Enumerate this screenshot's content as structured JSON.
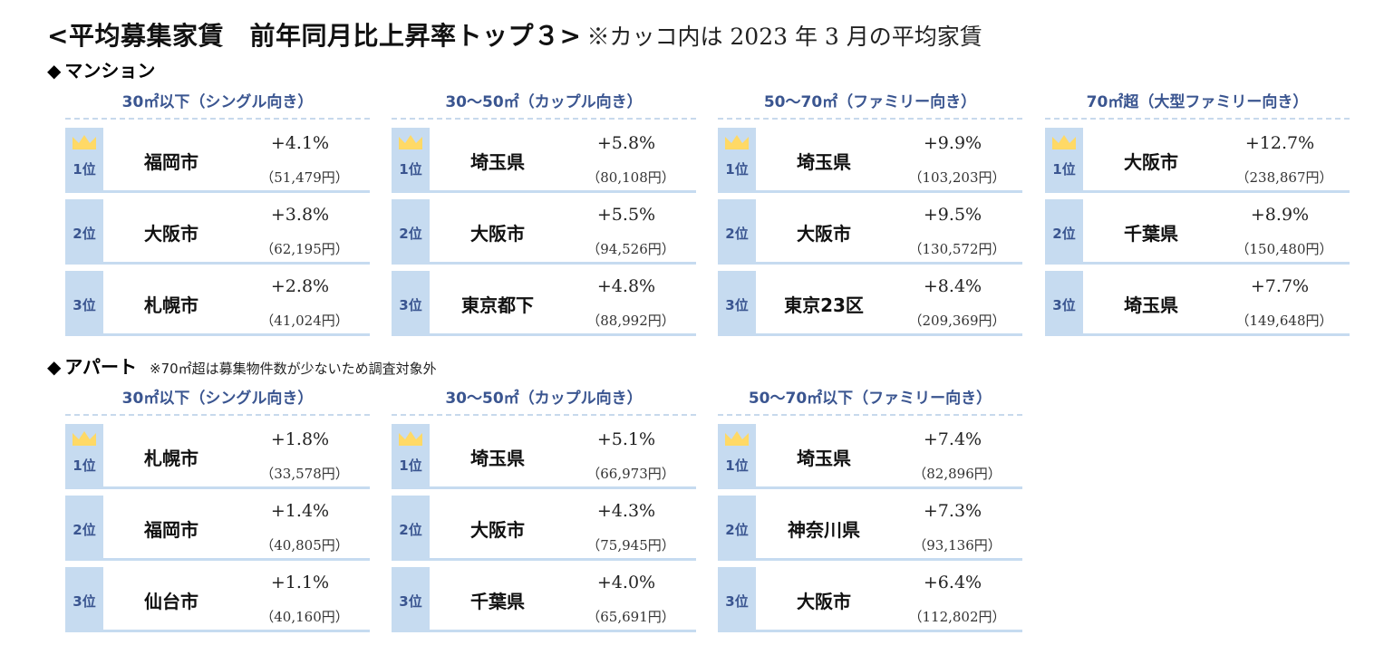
{
  "title": {
    "main": "<平均募集家賃　前年同月比上昇率トップ３>",
    "note": "※カッコ内は 2023 年 3 月の平均家賃"
  },
  "colors": {
    "rank_bg": "#c6dbf0",
    "header_text": "#3a5590",
    "crown": "#ffd966",
    "divider": "#c6dbf0"
  },
  "sections": [
    {
      "diamond": "◆",
      "name": "マンション",
      "sub": "",
      "blocks": [
        {
          "header": "30㎡以下（シングル向き）",
          "rows": [
            {
              "rank": "1位",
              "city": "福岡市",
              "pct": "+4.1%",
              "rent": "（51,479円）"
            },
            {
              "rank": "2位",
              "city": "大阪市",
              "pct": "+3.8%",
              "rent": "（62,195円）"
            },
            {
              "rank": "3位",
              "city": "札幌市",
              "pct": "+2.8%",
              "rent": "（41,024円）"
            }
          ]
        },
        {
          "header": "30～50㎡（カップル向き）",
          "rows": [
            {
              "rank": "1位",
              "city": "埼玉県",
              "pct": "+5.8%",
              "rent": "（80,108円）"
            },
            {
              "rank": "2位",
              "city": "大阪市",
              "pct": "+5.5%",
              "rent": "（94,526円）"
            },
            {
              "rank": "3位",
              "city": "東京都下",
              "pct": "+4.8%",
              "rent": "（88,992円）"
            }
          ]
        },
        {
          "header": "50～70㎡（ファミリー向き）",
          "rows": [
            {
              "rank": "1位",
              "city": "埼玉県",
              "pct": "+9.9%",
              "rent": "（103,203円）"
            },
            {
              "rank": "2位",
              "city": "大阪市",
              "pct": "+9.5%",
              "rent": "（130,572円）"
            },
            {
              "rank": "3位",
              "city": "東京23区",
              "pct": "+8.4%",
              "rent": "（209,369円）"
            }
          ]
        },
        {
          "header": "70㎡超（大型ファミリー向き）",
          "rows": [
            {
              "rank": "1位",
              "city": "大阪市",
              "pct": "+12.7%",
              "rent": "（238,867円）"
            },
            {
              "rank": "2位",
              "city": "千葉県",
              "pct": "+8.9%",
              "rent": "（150,480円）"
            },
            {
              "rank": "3位",
              "city": "埼玉県",
              "pct": "+7.7%",
              "rent": "（149,648円）"
            }
          ]
        }
      ]
    },
    {
      "diamond": "◆",
      "name": "アパート",
      "sub": "※70㎡超は募集物件数が少ないため調査対象外",
      "blocks": [
        {
          "header": "30㎡以下（シングル向き）",
          "rows": [
            {
              "rank": "1位",
              "city": "札幌市",
              "pct": "+1.8%",
              "rent": "（33,578円）"
            },
            {
              "rank": "2位",
              "city": "福岡市",
              "pct": "+1.4%",
              "rent": "（40,805円）"
            },
            {
              "rank": "3位",
              "city": "仙台市",
              "pct": "+1.1%",
              "rent": "（40,160円）"
            }
          ]
        },
        {
          "header": "30～50㎡（カップル向き）",
          "rows": [
            {
              "rank": "1位",
              "city": "埼玉県",
              "pct": "+5.1%",
              "rent": "（66,973円）"
            },
            {
              "rank": "2位",
              "city": "大阪市",
              "pct": "+4.3%",
              "rent": "（75,945円）"
            },
            {
              "rank": "3位",
              "city": "千葉県",
              "pct": "+4.0%",
              "rent": "（65,691円）"
            }
          ]
        },
        {
          "header": "50～70㎡以下（ファミリー向き）",
          "rows": [
            {
              "rank": "1位",
              "city": "埼玉県",
              "pct": "+7.4%",
              "rent": "（82,896円）"
            },
            {
              "rank": "2位",
              "city": "神奈川県",
              "pct": "+7.3%",
              "rent": "（93,136円）"
            },
            {
              "rank": "3位",
              "city": "大阪市",
              "pct": "+6.4%",
              "rent": "（112,802円）"
            }
          ]
        }
      ]
    }
  ]
}
